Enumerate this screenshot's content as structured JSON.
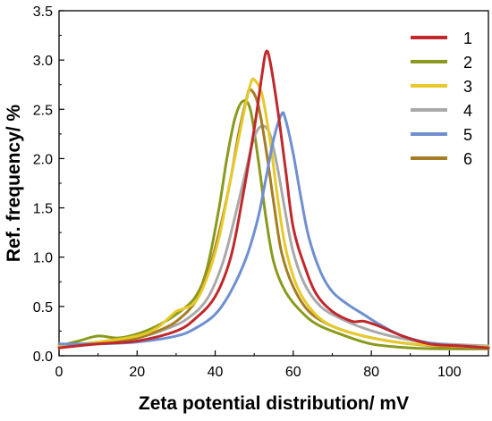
{
  "chart_data": {
    "type": "line",
    "title": "",
    "xlabel": "Zeta potential distribution/ mV",
    "ylabel": "Ref. frequency/ %",
    "xlim": [
      0,
      110
    ],
    "ylim": [
      0,
      3.5
    ],
    "x_ticks": [
      "0",
      "20",
      "40",
      "60",
      "80",
      "100"
    ],
    "y_ticks": [
      "0.0",
      "0.5",
      "1.0",
      "1.5",
      "2.0",
      "2.5",
      "3.0",
      "3.5"
    ],
    "grid": false,
    "legend_position": "top-right",
    "series": [
      {
        "name": "1",
        "color": "#c0282b",
        "points": [
          [
            0,
            0.08
          ],
          [
            10,
            0.12
          ],
          [
            20,
            0.15
          ],
          [
            30,
            0.25
          ],
          [
            35,
            0.38
          ],
          [
            40,
            0.6
          ],
          [
            44,
            1.0
          ],
          [
            47,
            1.6
          ],
          [
            50,
            2.3
          ],
          [
            52,
            2.85
          ],
          [
            53,
            3.08
          ],
          [
            54,
            3.0
          ],
          [
            56,
            2.5
          ],
          [
            58,
            1.9
          ],
          [
            60,
            1.3
          ],
          [
            63,
            0.9
          ],
          [
            66,
            0.62
          ],
          [
            70,
            0.45
          ],
          [
            75,
            0.35
          ],
          [
            78,
            0.35
          ],
          [
            82,
            0.3
          ],
          [
            88,
            0.2
          ],
          [
            95,
            0.12
          ],
          [
            103,
            0.1
          ],
          [
            110,
            0.08
          ]
        ]
      },
      {
        "name": "2",
        "color": "#8a9a1c",
        "points": [
          [
            0,
            0.1
          ],
          [
            5,
            0.15
          ],
          [
            10,
            0.2
          ],
          [
            15,
            0.18
          ],
          [
            20,
            0.22
          ],
          [
            25,
            0.3
          ],
          [
            30,
            0.42
          ],
          [
            35,
            0.6
          ],
          [
            38,
            0.9
          ],
          [
            41,
            1.5
          ],
          [
            43,
            2.0
          ],
          [
            45,
            2.4
          ],
          [
            47,
            2.58
          ],
          [
            49,
            2.5
          ],
          [
            51,
            2.0
          ],
          [
            53,
            1.4
          ],
          [
            55,
            0.95
          ],
          [
            58,
            0.65
          ],
          [
            62,
            0.45
          ],
          [
            66,
            0.32
          ],
          [
            72,
            0.22
          ],
          [
            80,
            0.12
          ],
          [
            90,
            0.08
          ],
          [
            100,
            0.07
          ],
          [
            110,
            0.07
          ]
        ]
      },
      {
        "name": "3",
        "color": "#e6c92a",
        "points": [
          [
            0,
            0.1
          ],
          [
            10,
            0.14
          ],
          [
            20,
            0.2
          ],
          [
            25,
            0.28
          ],
          [
            28,
            0.38
          ],
          [
            30,
            0.45
          ],
          [
            32,
            0.48
          ],
          [
            35,
            0.55
          ],
          [
            38,
            0.8
          ],
          [
            41,
            1.2
          ],
          [
            44,
            1.8
          ],
          [
            47,
            2.4
          ],
          [
            49,
            2.75
          ],
          [
            50,
            2.8
          ],
          [
            52,
            2.65
          ],
          [
            54,
            2.2
          ],
          [
            56,
            1.6
          ],
          [
            58,
            1.1
          ],
          [
            61,
            0.7
          ],
          [
            65,
            0.45
          ],
          [
            70,
            0.3
          ],
          [
            78,
            0.2
          ],
          [
            88,
            0.13
          ],
          [
            100,
            0.1
          ],
          [
            110,
            0.09
          ]
        ]
      },
      {
        "name": "4",
        "color": "#a9a9a9",
        "points": [
          [
            0,
            0.1
          ],
          [
            10,
            0.13
          ],
          [
            20,
            0.18
          ],
          [
            28,
            0.28
          ],
          [
            33,
            0.38
          ],
          [
            38,
            0.58
          ],
          [
            42,
            0.95
          ],
          [
            45,
            1.4
          ],
          [
            48,
            1.9
          ],
          [
            50,
            2.22
          ],
          [
            52,
            2.33
          ],
          [
            54,
            2.25
          ],
          [
            56,
            1.9
          ],
          [
            58,
            1.45
          ],
          [
            60,
            1.05
          ],
          [
            63,
            0.72
          ],
          [
            67,
            0.5
          ],
          [
            72,
            0.38
          ],
          [
            78,
            0.28
          ],
          [
            85,
            0.2
          ],
          [
            95,
            0.13
          ],
          [
            110,
            0.1
          ]
        ]
      },
      {
        "name": "5",
        "color": "#6f8fd0",
        "points": [
          [
            0,
            0.12
          ],
          [
            10,
            0.12
          ],
          [
            20,
            0.14
          ],
          [
            30,
            0.2
          ],
          [
            35,
            0.28
          ],
          [
            40,
            0.42
          ],
          [
            44,
            0.65
          ],
          [
            48,
            1.0
          ],
          [
            51,
            1.4
          ],
          [
            53,
            1.8
          ],
          [
            55,
            2.2
          ],
          [
            57,
            2.45
          ],
          [
            58,
            2.4
          ],
          [
            60,
            2.05
          ],
          [
            62,
            1.6
          ],
          [
            64,
            1.2
          ],
          [
            67,
            0.85
          ],
          [
            70,
            0.65
          ],
          [
            74,
            0.52
          ],
          [
            78,
            0.42
          ],
          [
            82,
            0.32
          ],
          [
            88,
            0.2
          ],
          [
            95,
            0.13
          ],
          [
            103,
            0.1
          ],
          [
            110,
            0.08
          ]
        ]
      },
      {
        "name": "6",
        "color": "#a67c24",
        "points": [
          [
            0,
            0.1
          ],
          [
            10,
            0.13
          ],
          [
            20,
            0.18
          ],
          [
            27,
            0.28
          ],
          [
            31,
            0.38
          ],
          [
            35,
            0.55
          ],
          [
            38,
            0.82
          ],
          [
            41,
            1.25
          ],
          [
            44,
            1.8
          ],
          [
            46,
            2.25
          ],
          [
            48,
            2.6
          ],
          [
            49,
            2.7
          ],
          [
            51,
            2.55
          ],
          [
            53,
            2.1
          ],
          [
            55,
            1.55
          ],
          [
            57,
            1.05
          ],
          [
            60,
            0.7
          ],
          [
            64,
            0.45
          ],
          [
            70,
            0.3
          ],
          [
            78,
            0.2
          ],
          [
            88,
            0.13
          ],
          [
            100,
            0.09
          ],
          [
            110,
            0.08
          ]
        ]
      }
    ]
  }
}
